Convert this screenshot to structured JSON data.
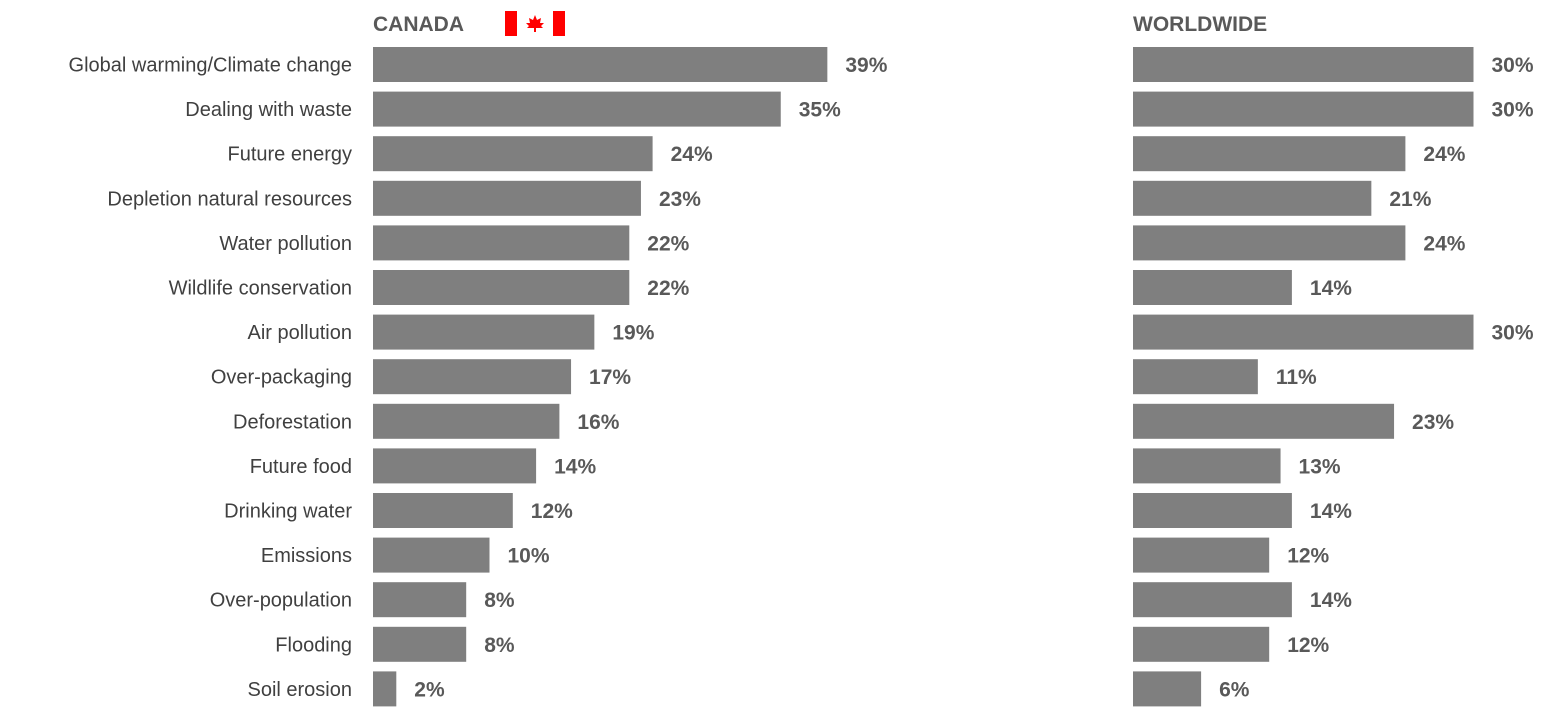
{
  "chart_data": {
    "type": "bar",
    "orientation": "horizontal",
    "categories": [
      "Global warming/Climate change",
      "Dealing with waste",
      "Future energy",
      "Depletion natural resources",
      "Water pollution",
      "Wildlife conservation",
      "Air pollution",
      "Over-packaging",
      "Deforestation",
      "Future food",
      "Drinking water",
      "Emissions",
      "Over-population",
      "Flooding",
      "Soil erosion"
    ],
    "series": [
      {
        "name": "CANADA",
        "values": [
          39,
          35,
          24,
          23,
          22,
          22,
          19,
          17,
          16,
          14,
          12,
          10,
          8,
          8,
          2
        ]
      },
      {
        "name": "WORLDWIDE",
        "values": [
          30,
          30,
          24,
          21,
          24,
          14,
          30,
          11,
          23,
          13,
          14,
          12,
          14,
          12,
          6
        ]
      }
    ],
    "value_suffix": "%",
    "grid": false,
    "bar_color": "#7f7f7f",
    "label_color": "#595959",
    "flag_colors": {
      "red": "#ff0000",
      "white": "#ffffff"
    },
    "flag_icon": "canada-flag-icon"
  }
}
